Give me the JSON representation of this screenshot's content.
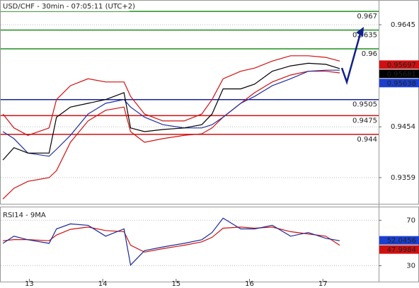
{
  "chart_data": [
    {
      "type": "line",
      "title": "USD/CHF - 30min - 07:05:11 (UTC+2)",
      "x": [
        12.64,
        12.79,
        12.98,
        13.27,
        13.37,
        13.56,
        13.8,
        14.04,
        14.29,
        14.38,
        14.57,
        14.82,
        15.11,
        15.35,
        15.49,
        15.64,
        15.88,
        16.07,
        16.31,
        16.56,
        16.8,
        17.04,
        17.23
      ],
      "xlim": [
        12.61,
        17.76
      ],
      "ylim": [
        0.931,
        0.969
      ],
      "yticks": [
        0.9359,
        0.9454,
        0.9645
      ],
      "grid": true,
      "series": [
        {
          "color": "#d01010",
          "values": [
            0.9478,
            0.9452,
            0.9438,
            0.9452,
            0.9505,
            0.9531,
            0.9544,
            0.9538,
            0.9538,
            0.9511,
            0.9478,
            0.9465,
            0.9465,
            0.9478,
            0.9505,
            0.9544,
            0.9558,
            0.9564,
            0.9577,
            0.9587,
            0.9587,
            0.9584,
            0.9577
          ]
        },
        {
          "color": "#d01010",
          "values": [
            0.9319,
            0.9339,
            0.9352,
            0.9359,
            0.9372,
            0.9425,
            0.9465,
            0.9485,
            0.9491,
            0.9445,
            0.9425,
            0.9432,
            0.9438,
            0.9441,
            0.9452,
            0.9472,
            0.9498,
            0.9518,
            0.9538,
            0.9551,
            0.9558,
            0.9558,
            0.9555
          ]
        },
        {
          "color": "#2030a0",
          "values": [
            0.9445,
            0.9432,
            0.9405,
            0.9399,
            0.9412,
            0.9438,
            0.9478,
            0.9498,
            0.9505,
            0.9491,
            0.9472,
            0.9458,
            0.9452,
            0.9452,
            0.9458,
            0.9472,
            0.9498,
            0.9511,
            0.9531,
            0.9544,
            0.9558,
            0.956,
            0.956
          ]
        },
        {
          "color": "#000000",
          "values": [
            0.9392,
            0.9415,
            0.9405,
            0.9405,
            0.9472,
            0.9491,
            0.9498,
            0.9505,
            0.9518,
            0.9452,
            0.9445,
            0.9449,
            0.9452,
            0.9458,
            0.9478,
            0.9525,
            0.9525,
            0.9534,
            0.9558,
            0.9568,
            0.9573,
            0.9571,
            0.9563
          ]
        }
      ],
      "levels": [
        {
          "value": 0.967,
          "color": "#1f8f1f"
        },
        {
          "value": 0.9635,
          "color": "#1f8f1f"
        },
        {
          "value": 0.96,
          "color": "#1f8f1f"
        },
        {
          "value": 0.9505,
          "color": "#1a23a0"
        },
        {
          "value": 0.9475,
          "color": "#d01010"
        },
        {
          "value": 0.944,
          "color": "#d01010"
        }
      ],
      "markers": [
        {
          "value": 0.95697,
          "color": "#d01010"
        },
        {
          "value": 0.95681,
          "color": "#000000"
        },
        {
          "value": 0.95638,
          "color": "#1a3fd0"
        }
      ]
    },
    {
      "type": "line",
      "title": "RSI14 - 9MA",
      "x": [
        12.64,
        12.79,
        12.98,
        13.27,
        13.37,
        13.56,
        13.8,
        14.04,
        14.29,
        14.38,
        14.57,
        14.82,
        15.11,
        15.35,
        15.49,
        15.64,
        15.88,
        16.07,
        16.31,
        16.56,
        16.8,
        17.04,
        17.23
      ],
      "xlim": [
        12.61,
        17.76
      ],
      "xticks": [
        13,
        14,
        15,
        16,
        17
      ],
      "ylim": [
        16,
        81.4
      ],
      "yticks": [
        30,
        70
      ],
      "grid": true,
      "series": [
        {
          "color": "#d01010",
          "values": [
            52,
            53,
            53,
            52,
            57,
            62,
            64,
            61,
            60,
            48,
            42,
            45,
            48,
            51,
            55,
            63,
            64,
            63,
            64,
            60,
            58,
            56,
            48
          ]
        },
        {
          "color": "#1a2a9a",
          "values": [
            49.7,
            56.0,
            52.9,
            49.7,
            62.4,
            66.8,
            65.6,
            56.0,
            62.4,
            30.6,
            43.3,
            46.5,
            49.7,
            52.9,
            59.2,
            71.9,
            62.4,
            62.4,
            65.6,
            56.0,
            59.2,
            54.1,
            52.0
          ]
        }
      ],
      "markers": [
        {
          "value": 52.0456,
          "color": "#1a3fd0"
        },
        {
          "value": 47.9984,
          "color": "#d01010"
        }
      ]
    }
  ]
}
